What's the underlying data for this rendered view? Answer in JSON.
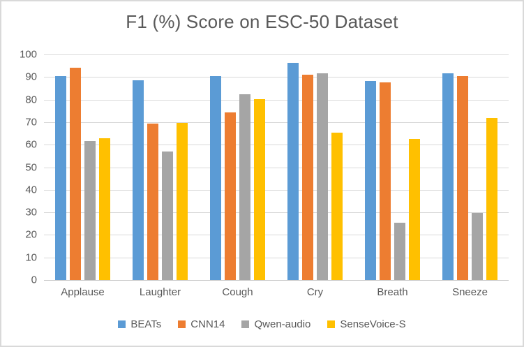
{
  "window": {
    "background": "#ffffff",
    "frame_border_color": "#D9D9D9"
  },
  "styles": {
    "text_color": "#595959",
    "gridline_color": "#D9D9D9",
    "axis_line_color": "#C6C6C6"
  },
  "chart_data": {
    "type": "bar",
    "title": "F1 (%) Score on ESC-50 Dataset",
    "xlabel": "",
    "ylabel": "",
    "categories": [
      "Applause",
      "Laughter",
      "Cough",
      "Cry",
      "Breath",
      "Sneeze"
    ],
    "series": [
      {
        "name": "BEATs",
        "color": "#5B9BD5",
        "values": [
          90.4,
          88.6,
          90.3,
          96.2,
          88.1,
          91.8
        ]
      },
      {
        "name": "CNN14",
        "color": "#ED7D31",
        "values": [
          94.0,
          69.4,
          74.2,
          91.0,
          87.7,
          90.3
        ]
      },
      {
        "name": "Qwen-audio",
        "color": "#A5A5A5",
        "values": [
          61.5,
          57.0,
          82.4,
          91.7,
          25.4,
          29.8
        ]
      },
      {
        "name": "SenseVoice-S",
        "color": "#FFC000",
        "values": [
          62.8,
          69.7,
          80.3,
          65.4,
          62.4,
          71.8
        ]
      }
    ],
    "ylim": [
      0,
      100
    ],
    "yticks": [
      0,
      10,
      20,
      30,
      40,
      50,
      60,
      70,
      80,
      90,
      100
    ],
    "grid": true,
    "legend_position": "bottom"
  }
}
